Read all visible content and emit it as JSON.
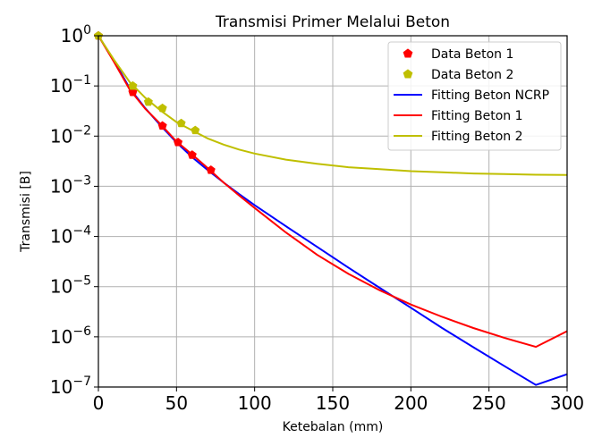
{
  "chart_data": {
    "type": "scatter",
    "title": "Transmisi Primer Melalui Beton",
    "xlabel": "Ketebalan (mm)",
    "ylabel": "Transmisi [B]",
    "xlim": [
      -2,
      300
    ],
    "ylim_log10": [
      -7,
      0
    ],
    "yscale": "log",
    "grid": true,
    "legend_position": "upper-right",
    "x_ticks": [
      0,
      50,
      100,
      150,
      200,
      250,
      300
    ],
    "y_tick_exponents": [
      0,
      -1,
      -2,
      -3,
      -4,
      -5,
      -6,
      -7
    ],
    "series": [
      {
        "name": "Data Beton 1",
        "kind": "markers",
        "marker": "pentagon",
        "color": "#ff0000",
        "x": [
          0,
          22,
          41,
          51,
          60,
          72
        ],
        "y": [
          1.0,
          0.075,
          0.016,
          0.0075,
          0.0042,
          0.0021
        ]
      },
      {
        "name": "Data Beton 2",
        "kind": "markers",
        "marker": "pentagon",
        "color": "#bfbf00",
        "x": [
          0,
          22,
          32,
          41,
          53,
          62
        ],
        "y": [
          1.0,
          0.1,
          0.048,
          0.036,
          0.018,
          0.013
        ]
      },
      {
        "name": "Fitting Beton NCRP",
        "kind": "line",
        "color": "#0000ff",
        "x": [
          0,
          10,
          20,
          30,
          40,
          50,
          60,
          70,
          80,
          90,
          100,
          120,
          140,
          160,
          180,
          200,
          220,
          240,
          260,
          280,
          300
        ],
        "y": [
          1.0,
          0.32,
          0.09,
          0.036,
          0.016,
          0.0075,
          0.0038,
          0.0021,
          0.0012,
          0.0007,
          0.00042,
          0.00016,
          6.2e-05,
          2.4e-05,
          9.5e-06,
          3.8e-06,
          1.5e-06,
          6.2e-07,
          2.6e-07,
          1.1e-07,
          1.8e-07
        ]
      },
      {
        "name": "Fitting Beton 1",
        "kind": "line",
        "color": "#ff0000",
        "x": [
          0,
          10,
          20,
          30,
          40,
          50,
          60,
          70,
          80,
          90,
          100,
          120,
          140,
          160,
          180,
          200,
          220,
          240,
          260,
          280,
          300
        ],
        "y": [
          1.0,
          0.3,
          0.085,
          0.035,
          0.017,
          0.0078,
          0.0043,
          0.0023,
          0.0012,
          0.00066,
          0.00037,
          0.00012,
          4.3e-05,
          1.8e-05,
          8.5e-06,
          4.4e-06,
          2.5e-06,
          1.5e-06,
          9.5e-07,
          6.3e-07,
          1.3e-06
        ]
      },
      {
        "name": "Fitting Beton 2",
        "kind": "line",
        "color": "#bfbf00",
        "x": [
          0,
          10,
          20,
          30,
          40,
          50,
          60,
          70,
          80,
          90,
          100,
          120,
          140,
          160,
          180,
          200,
          220,
          240,
          260,
          280,
          300
        ],
        "y": [
          1.0,
          0.33,
          0.12,
          0.058,
          0.032,
          0.019,
          0.013,
          0.009,
          0.0068,
          0.0054,
          0.0045,
          0.0034,
          0.0028,
          0.0024,
          0.0022,
          0.002,
          0.0019,
          0.0018,
          0.00175,
          0.0017,
          0.00168
        ]
      }
    ]
  }
}
